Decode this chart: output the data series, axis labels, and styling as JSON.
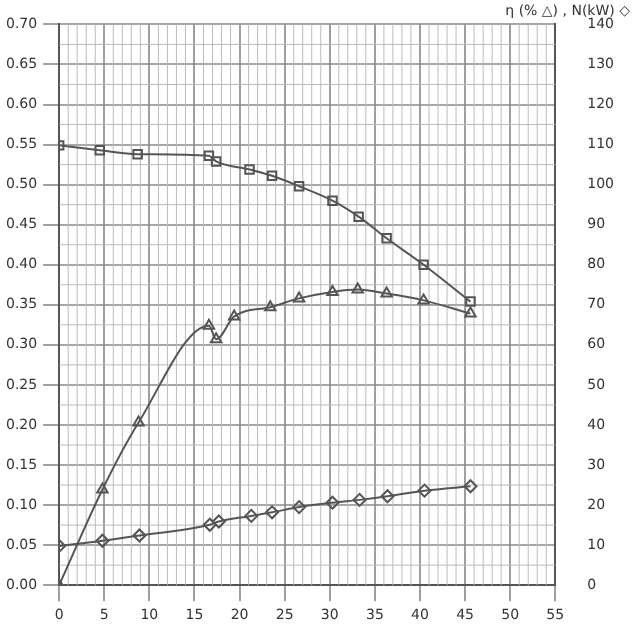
{
  "chart_data": {
    "type": "line",
    "y2label": "η (% △) , N(kW) ◇",
    "grid": true,
    "legend": false,
    "line_style": "solid",
    "xlim": [
      0,
      55
    ],
    "xticks": [
      0,
      5,
      10,
      15,
      20,
      25,
      30,
      35,
      40,
      45,
      50,
      55
    ],
    "ylim": [
      0,
      0.7
    ],
    "yticks": [
      {
        "value": 0,
        "label": "0.00"
      },
      {
        "value": 0.05,
        "label": "0.05"
      },
      {
        "value": 0.1,
        "label": "0.10"
      },
      {
        "value": 0.15,
        "label": "0.15"
      },
      {
        "value": 0.2,
        "label": "0.20"
      },
      {
        "value": 0.25,
        "label": "0.25"
      },
      {
        "value": 0.3,
        "label": "0.30"
      },
      {
        "value": 0.35,
        "label": "0.35"
      },
      {
        "value": 0.4,
        "label": "0.40"
      },
      {
        "value": 0.45,
        "label": "0.45"
      },
      {
        "value": 0.5,
        "label": "0.50"
      },
      {
        "value": 0.55,
        "label": "0.55"
      },
      {
        "value": 0.6,
        "label": "0.60"
      },
      {
        "value": 0.65,
        "label": "0.65"
      },
      {
        "value": 0.7,
        "label": "0.70"
      }
    ],
    "y2lim": [
      0,
      140
    ],
    "y2ticks": [
      0,
      10,
      20,
      30,
      40,
      50,
      60,
      70,
      80,
      90,
      100,
      110,
      120,
      130,
      140
    ],
    "series": [
      {
        "marker": "square",
        "color": "#555555",
        "x": [
          0,
          4.5,
          8.7,
          16.6,
          17.4,
          21.1,
          23.6,
          26.6,
          30.3,
          33.2,
          36.3,
          40.4,
          45.6
        ],
        "values": [
          0.549,
          0.543,
          0.538,
          0.536,
          0.529,
          0.519,
          0.511,
          0.498,
          0.48,
          0.46,
          0.433,
          0.4,
          0.354
        ]
      },
      {
        "marker": "triangle",
        "color": "#555555",
        "axis": "y2",
        "x": [
          0,
          4.8,
          8.8,
          16.6,
          17.4,
          19.4,
          23.4,
          26.6,
          30.3,
          33.1,
          36.3,
          40.4,
          45.6
        ],
        "values": [
          0,
          23.9,
          40.6,
          64.8,
          61.4,
          67.1,
          69.4,
          71.6,
          73.2,
          73.8,
          72.8,
          71.1,
          67.8
        ]
      },
      {
        "marker": "diamond",
        "color": "#555555",
        "axis": "y2",
        "x": [
          0,
          4.8,
          8.9,
          16.7,
          17.7,
          21.3,
          23.6,
          26.6,
          30.3,
          33.3,
          36.4,
          40.5,
          45.6
        ],
        "values": [
          9.8,
          11.1,
          12.4,
          15.1,
          15.9,
          17.3,
          18.2,
          19.5,
          20.6,
          21.3,
          22.2,
          23.6,
          24.7
        ]
      }
    ]
  }
}
